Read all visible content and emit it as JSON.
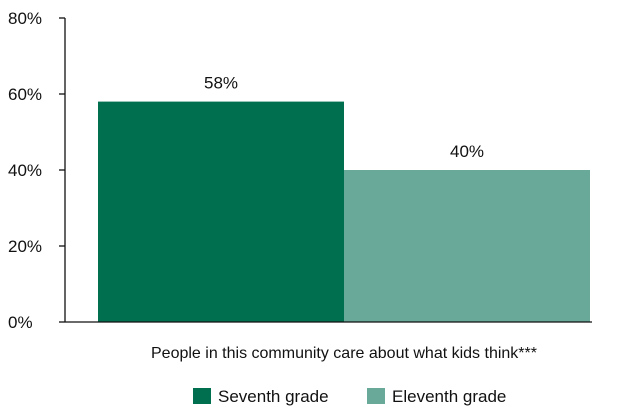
{
  "chart_data": {
    "type": "bar",
    "title": "",
    "xlabel": "",
    "ylabel": "",
    "ylim": [
      0,
      80
    ],
    "yticks": [
      0,
      20,
      40,
      60,
      80
    ],
    "ytick_labels": [
      "0%",
      "20%",
      "40%",
      "60%",
      "80%"
    ],
    "categories": [
      "People in this community care about what kids think***"
    ],
    "series": [
      {
        "name": "Seventh grade",
        "values": [
          58
        ],
        "label": "58%",
        "color": "#006f4f"
      },
      {
        "name": "Eleventh grade",
        "values": [
          40
        ],
        "label": "40%",
        "color": "#68a999"
      }
    ],
    "grid": false,
    "legend_position": "bottom"
  }
}
